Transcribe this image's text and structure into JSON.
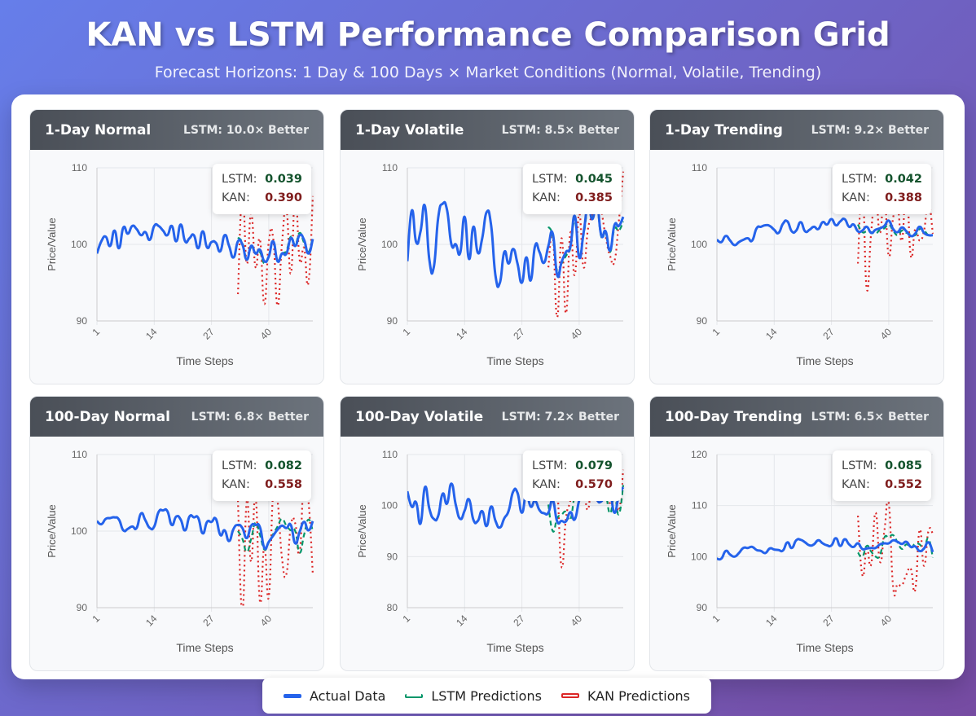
{
  "header": {
    "title": "KAN vs LSTM Performance Comparison Grid",
    "subtitle": "Forecast Horizons: 1 Day & 100 Days × Market Conditions (Normal, Volatile, Trending)"
  },
  "colors": {
    "actual": "#2563eb",
    "lstm": "#059669",
    "kan": "#dc2626"
  },
  "legend": {
    "actual": "Actual Data",
    "lstm": "LSTM Predictions",
    "kan": "KAN Predictions"
  },
  "metric_labels": {
    "lstm": "LSTM:",
    "kan": "KAN:"
  },
  "chart_data": [
    {
      "type": "line",
      "title": "1-Day Normal",
      "badge": "LSTM: 10.0× Better",
      "lstm_score": "0.039",
      "kan_score": "0.390",
      "xlabel": "Time Steps",
      "ylabel": "Price/Value",
      "ylim": [
        90,
        110
      ],
      "yticks": [
        90,
        100,
        110
      ],
      "xticks": [
        1,
        14,
        27,
        40
      ],
      "pred_start": 33,
      "actual": [
        98.8,
        100.4,
        101,
        99.8,
        101.8,
        99.5,
        102.2,
        101.4,
        102.4,
        102,
        101.2,
        101.6,
        100.6,
        102.4,
        102.4,
        101.8,
        101.2,
        102.4,
        100.4,
        102.6,
        100.4,
        100.8,
        101.2,
        99.5,
        101.7,
        99.6,
        100.3,
        100.2,
        99.1,
        101.2,
        99.8,
        98.3,
        100.4,
        100,
        98,
        99.8,
        98.8,
        99.3,
        97.8,
        98.4,
        100.4,
        97.8,
        98.8,
        98.8,
        100.8,
        99.8,
        101.2,
        100.6,
        98.8,
        100.7
      ],
      "lstm": [
        100.9,
        100.2,
        98.1,
        99.6,
        98.9,
        99,
        97.5,
        98.5,
        100.3,
        98,
        98.8,
        99.2,
        101,
        100,
        101.5,
        100.2,
        99,
        101
      ],
      "kan": [
        93.5,
        106.5,
        97.5,
        104,
        97,
        100.6,
        92.2,
        100.3,
        100.8,
        92,
        100.1,
        104.5,
        96.2,
        106.5,
        98,
        99.5,
        95,
        106.3
      ]
    },
    {
      "type": "line",
      "title": "1-Day Volatile",
      "badge": "LSTM: 8.5× Better",
      "lstm_score": "0.045",
      "kan_score": "0.385",
      "xlabel": "Time Steps",
      "ylabel": "Price/Value",
      "ylim": [
        90,
        110
      ],
      "yticks": [
        90,
        100,
        110
      ],
      "xticks": [
        1,
        14,
        27,
        40
      ],
      "pred_start": 33,
      "actual": [
        97.8,
        104.4,
        100.3,
        101.7,
        105,
        98,
        97,
        103.5,
        105.3,
        104.5,
        100,
        100,
        98.9,
        103.6,
        98.1,
        102.3,
        98.9,
        100.8,
        104.2,
        102.5,
        95.9,
        95,
        99,
        97.5,
        99.4,
        97.5,
        95,
        98.3,
        95.3,
        99.8,
        99,
        97.6,
        99.8,
        101.4,
        96,
        97.7,
        99,
        99.7,
        103.7,
        98.3,
        101.5,
        105,
        103.3,
        105.4,
        101.2,
        101.7,
        99.2,
        102.5,
        102.4,
        103.6
      ],
      "lstm": [
        102.3,
        101,
        96.5,
        97.5,
        98.5,
        99.5,
        103,
        98.8,
        101.2,
        104.5,
        103.5,
        105,
        101,
        101.4,
        99,
        102,
        101.8,
        103
      ],
      "kan": [
        97,
        101,
        90.5,
        100.8,
        91,
        101.5,
        96,
        104,
        97,
        102,
        104,
        107,
        104.5,
        101,
        98.5,
        97.8,
        103,
        109.5
      ]
    },
    {
      "type": "line",
      "title": "1-Day Trending",
      "badge": "LSTM: 9.2× Better",
      "lstm_score": "0.042",
      "kan_score": "0.388",
      "xlabel": "Time Steps",
      "ylabel": "Price/Value",
      "ylim": [
        90,
        110
      ],
      "yticks": [
        90,
        100,
        110
      ],
      "xticks": [
        1,
        14,
        27,
        40
      ],
      "pred_start": 33,
      "actual": [
        100.6,
        100.3,
        101.1,
        100.5,
        99.9,
        100.3,
        100.6,
        100.8,
        100.5,
        102.1,
        102.3,
        102.5,
        102.4,
        101.9,
        101.5,
        102.7,
        103,
        101.7,
        101.8,
        102.9,
        101.7,
        101.9,
        102.3,
        102,
        102.9,
        102.6,
        103.3,
        102.5,
        103,
        103.3,
        102.3,
        102.6,
        101.7,
        101.8,
        102.3,
        101.5,
        101.9,
        102.1,
        102.4,
        103.1,
        102,
        101.6,
        102.2,
        101.7,
        101.1,
        101.4,
        102.3,
        101.5,
        101.2,
        101.2
      ],
      "lstm": [
        102.6,
        101.6,
        101.7,
        101.6,
        101.4,
        101.9,
        102.1,
        102.6,
        101.8,
        101.2,
        101.8,
        101.5,
        101.3,
        101.2,
        102,
        101.8,
        101.2,
        101.2
      ],
      "kan": [
        97.5,
        107.5,
        94.2,
        101.5,
        106.5,
        101.5,
        106.5,
        98.5,
        103.5,
        105,
        100.5,
        107.5,
        98.5,
        102,
        100.5,
        101.8,
        105.5,
        101.4
      ]
    },
    {
      "type": "line",
      "title": "100-Day Normal",
      "badge": "LSTM: 6.8× Better",
      "lstm_score": "0.082",
      "kan_score": "0.558",
      "xlabel": "Time Steps",
      "ylabel": "Price/Value",
      "ylim": [
        90,
        110
      ],
      "yticks": [
        90,
        100,
        110
      ],
      "xticks": [
        1,
        14,
        27,
        40
      ],
      "pred_start": 33,
      "actual": [
        101.3,
        100.9,
        101.6,
        101.7,
        101.8,
        101.5,
        100.1,
        100.3,
        100.6,
        100.4,
        102.3,
        101.4,
        100.4,
        100.6,
        102.5,
        102.7,
        102.6,
        100.8,
        101.9,
        101.5,
        100.1,
        101.9,
        101.8,
        101.7,
        99.7,
        101.2,
        101.2,
        101.6,
        99.5,
        100.1,
        98.7,
        100.3,
        100.8,
        100.4,
        99.1,
        100.7,
        100.8,
        100.5,
        97.8,
        98.6,
        99.4,
        100.2,
        100.7,
        100.4,
        100.8,
        98.4,
        99.9,
        101.2,
        100.1,
        101.3
      ],
      "lstm": [
        100,
        99,
        97.3,
        99,
        101.1,
        99.5,
        97.6,
        98.5,
        99.6,
        100.6,
        101.6,
        100.7,
        100.1,
        100,
        97.2,
        99.5,
        101.5,
        100
      ],
      "kan": [
        104,
        89.5,
        103.9,
        96,
        104.4,
        90.8,
        98,
        91.4,
        105,
        103.9,
        96.5,
        94.4,
        100.7,
        101,
        97.2,
        107,
        104,
        94.3
      ]
    },
    {
      "type": "line",
      "title": "100-Day Volatile",
      "badge": "LSTM: 7.2× Better",
      "lstm_score": "0.079",
      "kan_score": "0.570",
      "xlabel": "Time Steps",
      "ylabel": "Price/Value",
      "ylim": [
        80,
        110
      ],
      "yticks": [
        80,
        90,
        100,
        110
      ],
      "xticks": [
        1,
        14,
        27,
        40
      ],
      "pred_start": 33,
      "actual": [
        102.8,
        99.8,
        100.6,
        96.5,
        103.6,
        99.4,
        97.4,
        98,
        102.3,
        100.4,
        104.3,
        100.1,
        97.4,
        99,
        101.2,
        97.2,
        97,
        98.9,
        96,
        99.8,
        97,
        95.7,
        97.5,
        99,
        102.7,
        102.5,
        98.6,
        102.3,
        99.8,
        100.9,
        99.1,
        98.5,
        98.6,
        101,
        96.9,
        97,
        96.9,
        98.7,
        97.3,
        101,
        103.2,
        102.6,
        103.8,
        101.2,
        100.8,
        102.4,
        102.8,
        98.6,
        102,
        103.6
      ],
      "lstm": [
        100.2,
        95,
        97.5,
        98.2,
        98.8,
        97.3,
        102,
        103.5,
        101.5,
        103.5,
        101,
        102.2,
        104,
        102.5,
        98.5,
        102,
        98.3,
        104
      ],
      "kan": [
        104.5,
        102.2,
        103,
        88,
        97.5,
        101,
        106,
        105.5,
        104,
        99.2,
        106,
        101,
        104.5,
        103.5,
        100.5,
        104,
        99,
        107
      ]
    },
    {
      "type": "line",
      "title": "100-Day Trending",
      "badge": "LSTM: 6.5× Better",
      "lstm_score": "0.085",
      "kan_score": "0.552",
      "xlabel": "Time Steps",
      "ylabel": "Price/Value",
      "ylim": [
        90,
        120
      ],
      "yticks": [
        90,
        100,
        110,
        120
      ],
      "xticks": [
        1,
        14,
        27,
        40
      ],
      "pred_start": 33,
      "actual": [
        99.6,
        99.6,
        101.1,
        100.4,
        100,
        100.7,
        101.7,
        101.7,
        101.9,
        101.3,
        101.1,
        100.7,
        101.6,
        101.4,
        101.3,
        101.2,
        102.8,
        101.7,
        103.2,
        103.3,
        102.8,
        102.2,
        102.4,
        103.2,
        102.6,
        102.2,
        102.2,
        103.6,
        102.1,
        103.4,
        102.4,
        101.9,
        102.6,
        101.5,
        101.6,
        101.7,
        101.7,
        102.4,
        102.6,
        102.6,
        103.2,
        102.9,
        102.5,
        102.9,
        101.9,
        102,
        101.1,
        101.6,
        102.8,
        100.9
      ],
      "lstm": [
        100.8,
        100,
        102.1,
        101,
        100,
        100.3,
        103.7,
        103.8,
        104.2,
        102.8,
        101.5,
        102.4,
        101.8,
        102.5,
        102.4,
        101.5,
        103.5,
        99.8
      ],
      "kan": [
        108,
        96.4,
        101.5,
        98.5,
        108.6,
        99,
        105,
        110.5,
        94,
        94.6,
        94.4,
        96.5,
        97.6,
        93.5,
        105.2,
        98.2,
        105,
        104.5
      ]
    }
  ]
}
